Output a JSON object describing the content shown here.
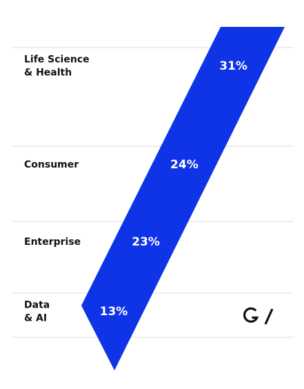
{
  "chart_data": {
    "type": "bar",
    "categories": [
      "Life Science\n& Health",
      "Consumer",
      "Enterprise",
      "Data\n& AI"
    ],
    "values": [
      31,
      24,
      23,
      13
    ],
    "value_labels": [
      "31%",
      "24%",
      "23%",
      "13%"
    ],
    "unit": "%",
    "title": "",
    "xlabel": "",
    "ylabel": "",
    "grid": true,
    "legend": "none"
  },
  "colors": {
    "band": "#0f33e6",
    "grid": "#dcdcdc",
    "text": "#111111",
    "value_text": "#ffffff"
  },
  "brand": {
    "logo": "G/"
  }
}
